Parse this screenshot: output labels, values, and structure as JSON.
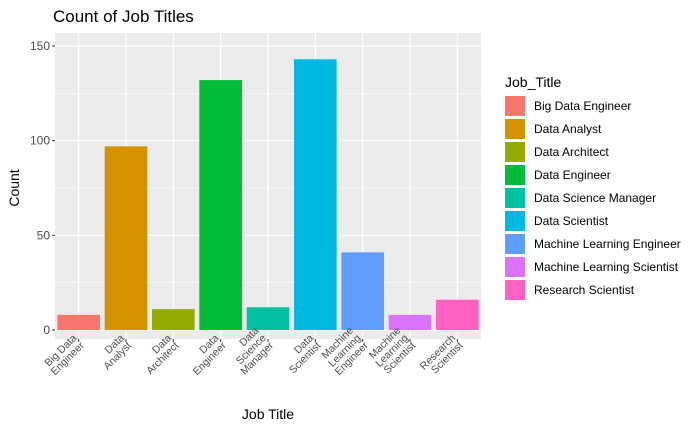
{
  "chart_data": {
    "type": "bar",
    "title": "Count of Job Titles",
    "xlabel": "Job Title",
    "ylabel": "Count",
    "ylim": [
      0,
      150
    ],
    "yticks": [
      0,
      50,
      100,
      150
    ],
    "grid": true,
    "legend_title": "Job_Title",
    "legend_position": "right",
    "categories": [
      "Big Data Engineer",
      "Data Analyst",
      "Data Architect",
      "Data Engineer",
      "Data Science Manager",
      "Data Scientist",
      "Machine Learning Engineer",
      "Machine Learning Scientist",
      "Research Scientist"
    ],
    "category_tick_lines": [
      [
        "Big Data",
        "Engineer"
      ],
      [
        "Data",
        "Analyst"
      ],
      [
        "Data",
        "Architect"
      ],
      [
        "Data",
        "Engineer"
      ],
      [
        "Data",
        "Science",
        "Manager"
      ],
      [
        "Data",
        "Scientist"
      ],
      [
        "Machine",
        "Learning",
        "Engineer"
      ],
      [
        "Machine",
        "Learning",
        "Scientist"
      ],
      [
        "Research",
        "Scientist"
      ]
    ],
    "values": [
      8,
      97,
      11,
      132,
      12,
      143,
      41,
      8,
      16
    ],
    "colors": [
      "#F8766D",
      "#D39200",
      "#93AA00",
      "#00BA38",
      "#00C19F",
      "#00B9E3",
      "#619CFF",
      "#DB72FB",
      "#FF61C3"
    ]
  }
}
